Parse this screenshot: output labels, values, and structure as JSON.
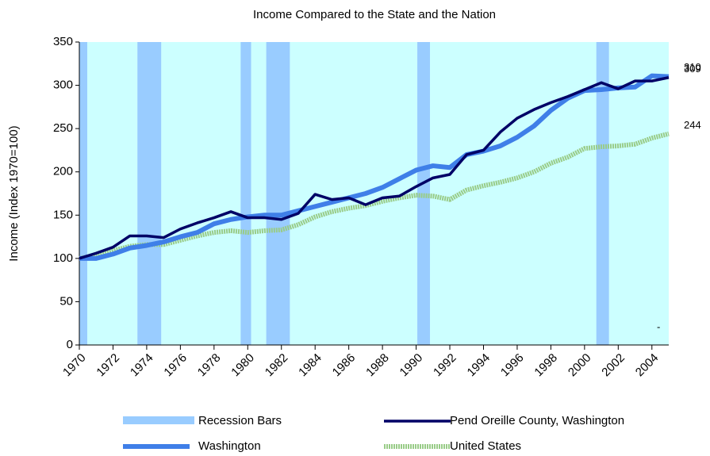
{
  "chart_data": {
    "type": "line",
    "title": "Income Compared to the State and the Nation",
    "y_label": "Income (Index 1970=100)",
    "x": [
      1970,
      1971,
      1972,
      1973,
      1974,
      1975,
      1976,
      1977,
      1978,
      1979,
      1980,
      1981,
      1982,
      1983,
      1984,
      1985,
      1986,
      1987,
      1988,
      1989,
      1990,
      1991,
      1992,
      1993,
      1994,
      1995,
      1996,
      1997,
      1998,
      1999,
      2000,
      2001,
      2002,
      2003,
      2004,
      2005
    ],
    "xlim": [
      1970,
      2005
    ],
    "xticks": [
      1970,
      1972,
      1974,
      1976,
      1978,
      1980,
      1982,
      1984,
      1986,
      1988,
      1990,
      1992,
      1994,
      1996,
      1998,
      2000,
      2002,
      2004
    ],
    "ylim": [
      0,
      350
    ],
    "yticks": [
      0,
      50,
      100,
      150,
      200,
      250,
      300,
      350
    ],
    "recessions": {
      "name": "Recession Bars",
      "color": "#99ccff",
      "ranges": [
        [
          1970.0,
          1970.47
        ],
        [
          1973.45,
          1974.86
        ],
        [
          1979.58,
          1980.2
        ],
        [
          1981.1,
          1982.5
        ],
        [
          1990.07,
          1990.82
        ],
        [
          2000.7,
          2001.45
        ]
      ]
    },
    "series": [
      {
        "name": "Pend Oreille County, Washington",
        "color": "#000066",
        "values": [
          100,
          106,
          113,
          126,
          126,
          124,
          134,
          141,
          147,
          154,
          147,
          147,
          145,
          152,
          174,
          168,
          170,
          162,
          170,
          172,
          183,
          193,
          197,
          220,
          225,
          246,
          262,
          272,
          280,
          287,
          295,
          303,
          296,
          305,
          305,
          309
        ]
      },
      {
        "name": "Washington",
        "color": "#3f7fe8",
        "values": [
          100,
          100,
          105,
          112,
          115,
          119,
          125,
          130,
          140,
          145,
          148,
          150,
          150,
          155,
          160,
          165,
          170,
          175,
          182,
          192,
          202,
          207,
          205,
          220,
          224,
          230,
          240,
          253,
          271,
          285,
          294,
          295,
          297,
          298,
          311,
          310
        ]
      },
      {
        "name": "United States",
        "color": "#99cc88",
        "values": [
          100,
          103,
          109,
          114,
          116,
          116,
          121,
          126,
          130,
          132,
          130,
          132,
          133,
          139,
          148,
          154,
          158,
          161,
          166,
          170,
          173,
          172,
          168,
          179,
          184,
          188,
          193,
          200,
          210,
          217,
          227,
          229,
          230,
          232,
          239,
          244
        ]
      }
    ],
    "annotation": "-"
  }
}
